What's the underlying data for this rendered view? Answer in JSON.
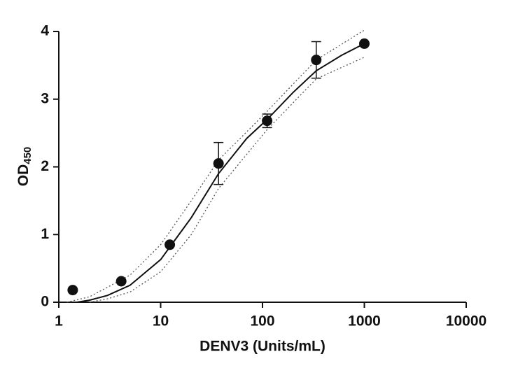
{
  "chart_data": {
    "type": "scatter",
    "x_label": "DENV3 (Units/mL)",
    "y_label": "OD",
    "y_label_sub": "450",
    "xlim": [
      1,
      10000
    ],
    "xticks": [
      1,
      10,
      100,
      1000,
      10000
    ],
    "xscale": "log",
    "ylim": [
      0,
      4
    ],
    "yticks": [
      0,
      1,
      2,
      3,
      4
    ],
    "series": [
      {
        "style": "dotted",
        "color": "#555555",
        "x": [
          1.2,
          2,
          5,
          10,
          20,
          37,
          111,
          337,
          1000
        ],
        "values": [
          0,
          0.08,
          0.4,
          0.85,
          1.5,
          2.1,
          2.82,
          3.58,
          4.02
        ]
      },
      {
        "style": "dotted",
        "color": "#555555",
        "x": [
          2,
          3,
          5,
          10,
          20,
          37,
          111,
          337,
          1000
        ],
        "values": [
          0,
          0.05,
          0.15,
          0.45,
          1.0,
          1.68,
          2.55,
          3.3,
          3.62
        ]
      },
      {
        "style": "line",
        "color": "#111111",
        "x": [
          1.5,
          2,
          3,
          5,
          10,
          20,
          37,
          70,
          111,
          200,
          337,
          600,
          1000
        ],
        "values": [
          0,
          0.03,
          0.1,
          0.25,
          0.63,
          1.25,
          1.9,
          2.42,
          2.7,
          3.1,
          3.42,
          3.65,
          3.82
        ]
      },
      {
        "style": "markers",
        "color": "#111111",
        "x": [
          1.37,
          4.1,
          12.3,
          37,
          111,
          337,
          1000
        ],
        "values": [
          0.18,
          0.31,
          0.85,
          2.05,
          2.68,
          3.58,
          3.82
        ],
        "errors": [
          null,
          null,
          null,
          0.31,
          0.1,
          0.27,
          null
        ]
      }
    ]
  }
}
